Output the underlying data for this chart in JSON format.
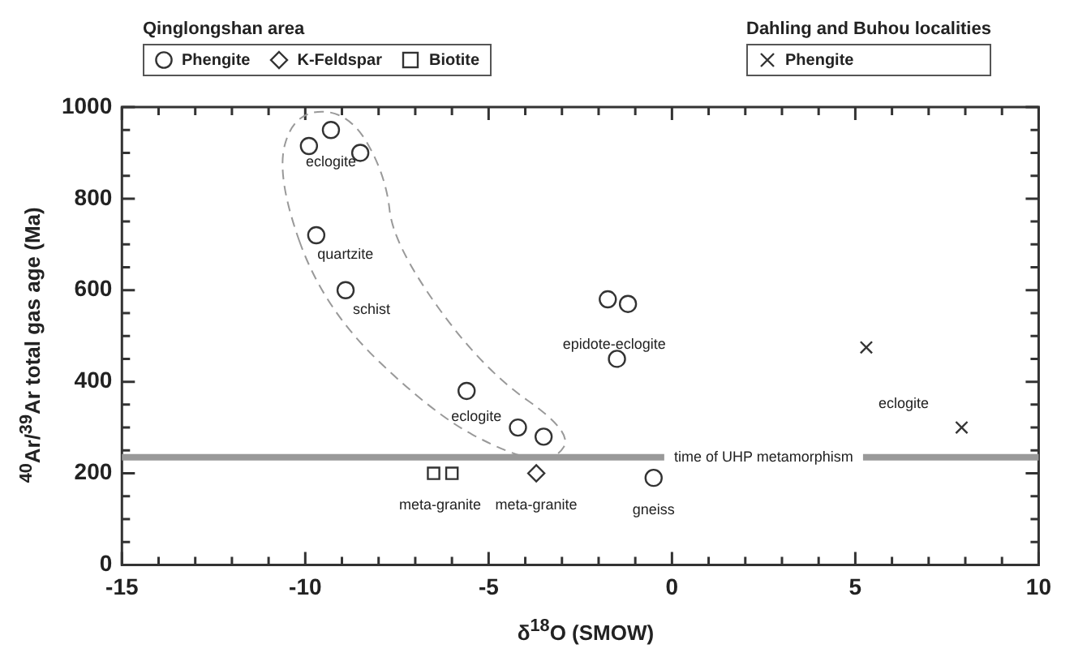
{
  "chart_data": {
    "type": "scatter",
    "xlabel": "δ$^{18}$O (SMOW)",
    "ylabel": "$^{40}$Ar/$^{39}$Ar total gas age (Ma)",
    "legend_title": [
      "Qinglongshan area",
      "Dahling and Buhou localities"
    ],
    "legend": "top",
    "xlim": [
      -15,
      10
    ],
    "ylim": [
      0,
      1000
    ],
    "xticks": [
      -15,
      {
        "value": -14,
        "label": null
      },
      {
        "value": -13,
        "label": null
      },
      {
        "value": -12,
        "label": null
      },
      {
        "value": -11,
        "label": null
      },
      -10,
      {
        "value": -9,
        "label": null
      },
      {
        "value": -8,
        "label": null
      },
      {
        "value": -7,
        "label": null
      },
      {
        "value": -6,
        "label": null
      },
      -5,
      {
        "value": -4,
        "label": null
      },
      {
        "value": -3,
        "label": null
      },
      {
        "value": -2,
        "label": null
      },
      {
        "value": -1,
        "label": null
      },
      0,
      {
        "value": 1,
        "label": null
      },
      {
        "value": 2,
        "label": null
      },
      {
        "value": 3,
        "label": null
      },
      {
        "value": 4,
        "label": null
      },
      5,
      {
        "value": 6,
        "label": null
      },
      {
        "value": 7,
        "label": null
      },
      {
        "value": 8,
        "label": null
      },
      {
        "value": 9,
        "label": null
      },
      10
    ],
    "yticks": [
      0,
      {
        "value": 50,
        "label": null
      },
      {
        "value": 100,
        "label": null
      },
      {
        "value": 150,
        "label": null
      },
      200,
      {
        "value": 250,
        "label": null
      },
      {
        "value": 300,
        "label": null
      },
      {
        "value": 350,
        "label": null
      },
      400,
      {
        "value": 450,
        "label": null
      },
      {
        "value": 500,
        "label": null
      },
      {
        "value": 550,
        "label": null
      },
      600,
      {
        "value": 650,
        "label": null
      },
      {
        "value": 700,
        "label": null
      },
      {
        "value": 750,
        "label": null
      },
      800,
      {
        "value": 850,
        "label": null
      },
      {
        "value": 900,
        "label": null
      },
      {
        "value": 950,
        "label": null
      },
      1000
    ],
    "grid": false,
    "series": [
      {
        "name": "Phengite",
        "marker": "circle",
        "color": "#333333",
        "x": [
          -9.9,
          -9.3,
          -8.5,
          -9.7,
          -8.9,
          -5.6,
          -4.2,
          -3.5,
          -1.75,
          -1.2,
          -1.5,
          -0.5
        ],
        "values": [
          915,
          950,
          900,
          720,
          600,
          380,
          300,
          280,
          580,
          570,
          450,
          190
        ]
      },
      {
        "name": "K-Feldspar",
        "marker": "diamond",
        "color": "#333333",
        "x": [
          -3.7
        ],
        "values": [
          200
        ]
      },
      {
        "name": "Biotite",
        "marker": "square",
        "color": "#333333",
        "x": [
          -6.5,
          -6.0
        ],
        "values": [
          200,
          200
        ]
      },
      {
        "name": "Phengite",
        "marker": "cross",
        "color": "#333333",
        "x": [
          5.3,
          7.9
        ],
        "values": [
          475,
          300
        ]
      }
    ],
    "ref_lines": [
      {
        "axis": "y",
        "value": 235,
        "label": "time of UHP metamorphism",
        "color": "#999999"
      }
    ],
    "annotations": [
      "eclogite",
      "quartzite",
      "schist",
      "eclogite",
      "epidote-eclogite",
      "eclogite",
      "meta-granite",
      "meta-granite",
      "gneiss"
    ]
  }
}
